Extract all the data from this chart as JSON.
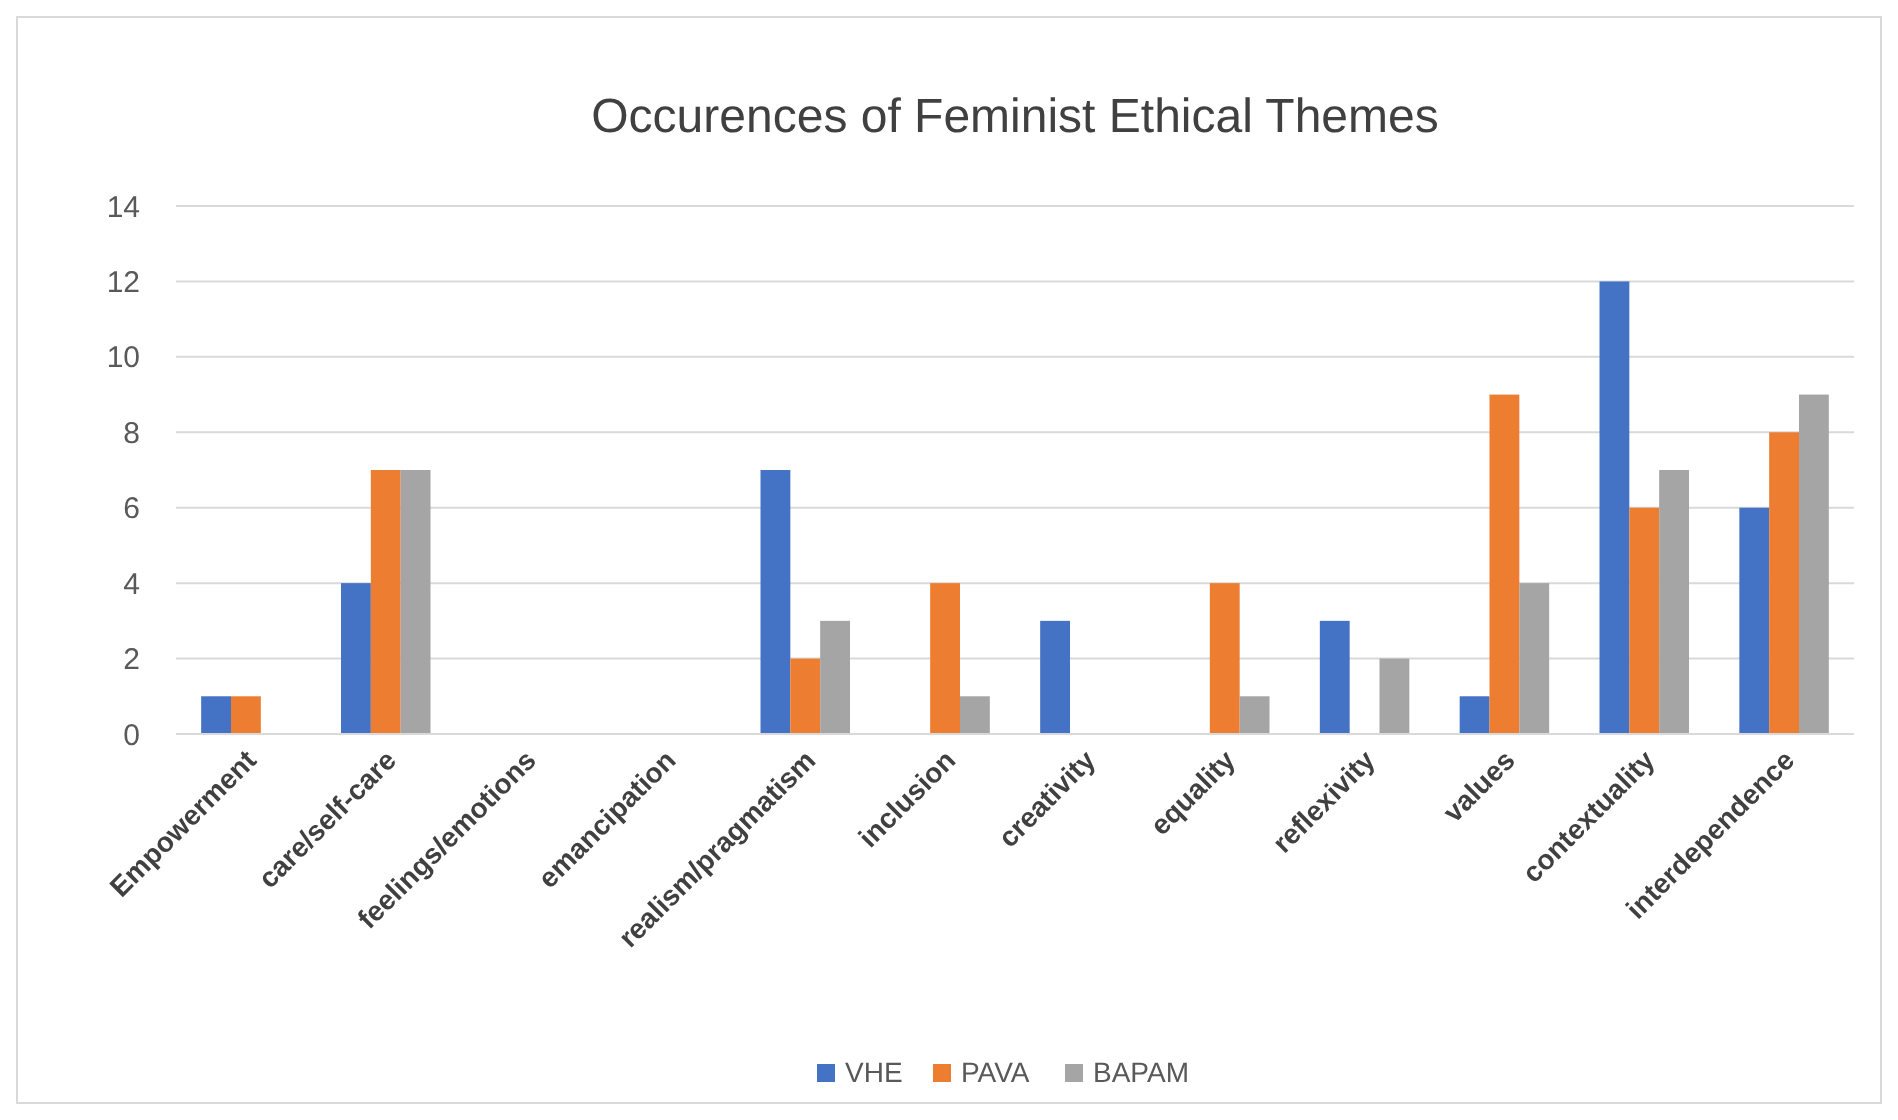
{
  "chart_data": {
    "type": "bar",
    "title": "Occurences of Feminist Ethical Themes",
    "categories": [
      "Empowerment",
      "care/self-care",
      "feelings/emotions",
      "emancipation",
      "realism/pragmatism",
      "inclusion",
      "creativity",
      "equality",
      "reflexivity",
      "values",
      "contextuality",
      "interdependence"
    ],
    "series": [
      {
        "name": "VHE",
        "color": "#4472c4",
        "values": [
          1,
          4,
          0,
          0,
          7,
          0,
          3,
          0,
          3,
          1,
          12,
          6
        ]
      },
      {
        "name": "PAVA",
        "color": "#ed7d31",
        "values": [
          1,
          7,
          0,
          0,
          2,
          4,
          0,
          4,
          0,
          9,
          6,
          8
        ]
      },
      {
        "name": "BAPAM",
        "color": "#a5a5a5",
        "values": [
          0,
          7,
          0,
          0,
          3,
          1,
          0,
          1,
          2,
          4,
          7,
          9
        ]
      }
    ],
    "ylim": [
      0,
      14
    ],
    "yticks": [
      0,
      2,
      4,
      6,
      8,
      10,
      12,
      14
    ],
    "grid": "y",
    "legend": "bottom"
  }
}
